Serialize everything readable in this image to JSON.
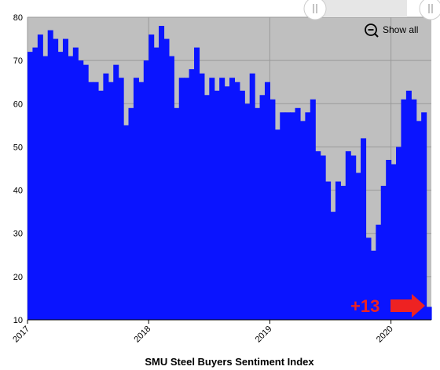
{
  "chart_data": {
    "type": "bar",
    "title": "SMU Steel Buyers Sentiment Index",
    "xlabel": "",
    "ylabel": "",
    "ylim": [
      10,
      80
    ],
    "yticks": [
      "10",
      "20",
      "30",
      "40",
      "50",
      "60",
      "70",
      "80"
    ],
    "xticks": [
      {
        "label": "2017",
        "index": 0
      },
      {
        "label": "2018",
        "index": 24
      },
      {
        "label": "2019",
        "index": 48
      },
      {
        "label": "2020",
        "index": 72
      }
    ],
    "values": [
      72,
      73,
      76,
      71,
      77,
      75,
      72,
      75,
      71,
      73,
      70,
      69,
      65,
      65,
      63,
      67,
      65,
      69,
      66,
      55,
      59,
      66,
      65,
      70,
      76,
      73,
      78,
      75,
      71,
      59,
      66,
      66,
      68,
      73,
      67,
      62,
      66,
      63,
      66,
      64,
      66,
      65,
      63,
      60,
      67,
      59,
      62,
      65,
      61,
      54,
      58,
      58,
      58,
      59,
      56,
      58,
      61,
      49,
      48,
      42,
      35,
      42,
      41,
      49,
      48,
      44,
      52,
      29,
      26,
      32,
      41,
      47,
      46,
      50,
      61,
      63,
      61,
      56,
      58,
      13
    ],
    "grid": true,
    "colors": {
      "bar": "#0a14ff",
      "plot_bg": "#bfbfbf",
      "annotation": "#ee2222"
    },
    "annotation": {
      "text": "+13",
      "arrow": "right-arrow-icon"
    },
    "controls": {
      "show_all_label": "Show all",
      "icon": "zoom-out-icon"
    }
  }
}
